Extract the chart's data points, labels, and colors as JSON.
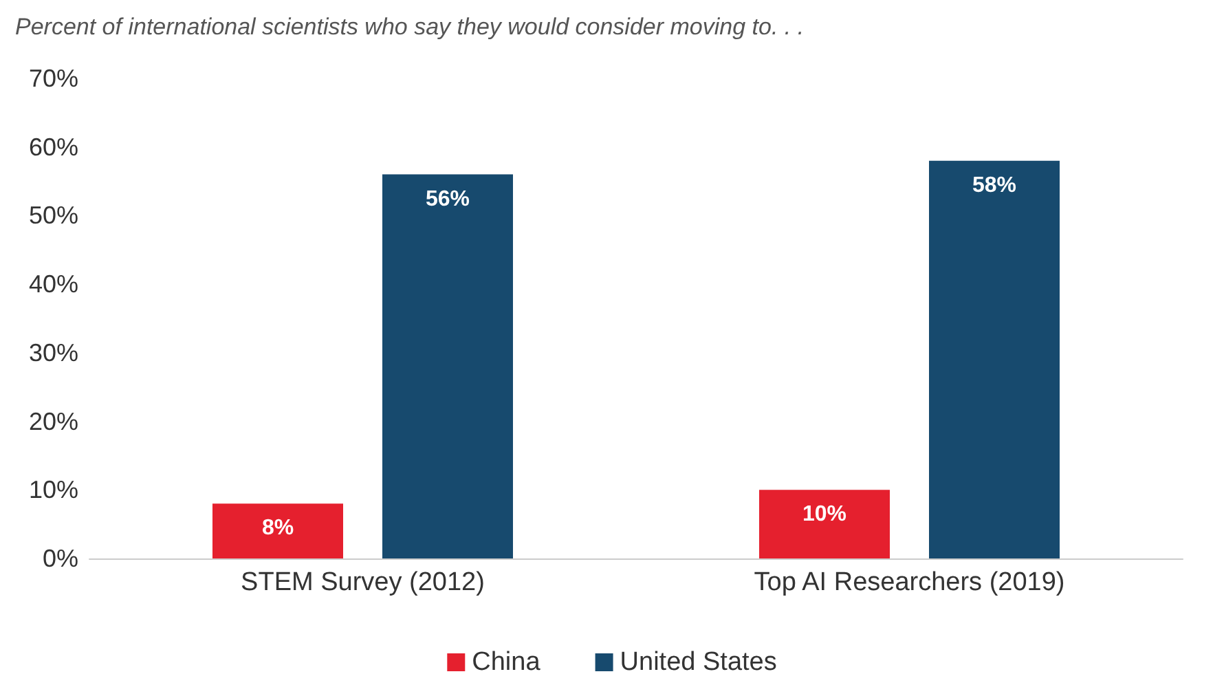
{
  "chart_data": {
    "type": "bar",
    "title": "Percent of international scientists who say they would consider moving to. . .",
    "categories": [
      "STEM Survey (2012)",
      "Top AI Researchers (2019)"
    ],
    "series": [
      {
        "name": "China",
        "color": "#e5202e",
        "values": [
          8,
          10
        ],
        "value_labels": [
          "8%",
          "10%"
        ]
      },
      {
        "name": "United States",
        "color": "#174a6e",
        "values": [
          56,
          58
        ],
        "value_labels": [
          "56%",
          "58%"
        ]
      }
    ],
    "ylim": [
      0,
      70
    ],
    "yticks": [
      {
        "value": 0,
        "label": "0%"
      },
      {
        "value": 10,
        "label": "10%"
      },
      {
        "value": 20,
        "label": "20%"
      },
      {
        "value": 30,
        "label": "30%"
      },
      {
        "value": 40,
        "label": "40%"
      },
      {
        "value": 50,
        "label": "50%"
      },
      {
        "value": 60,
        "label": "60%"
      },
      {
        "value": 70,
        "label": "70%"
      }
    ],
    "grid": false,
    "legend": "bottom"
  }
}
